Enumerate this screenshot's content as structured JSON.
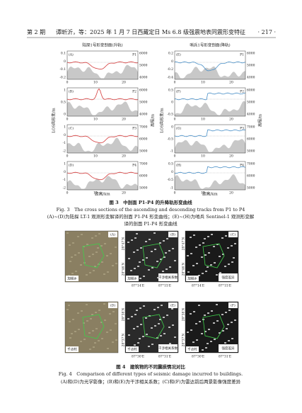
{
  "header": {
    "issue": "第 2 期",
    "title": "谭昕沂，等：2025 年 1 月 7 日西藏定日 Ms 6.8 级强震地表同震形变特征",
    "page": "· 217 ·"
  },
  "figure3": {
    "column_titles": [
      "陆探1号形变剖面(升轨)",
      "哨兵1号形变剖面(降轨)"
    ],
    "y_label": "LOS向形变/m",
    "y2_label": "高程/m",
    "x_label": "距离/km",
    "panels": [
      {
        "label": "(A)",
        "profile": "P1",
        "yticks": [
          "0.1",
          "0",
          "-0.1",
          "-0.2"
        ],
        "y2ticks": [
          "6000",
          "5000",
          "4000"
        ],
        "xticks": [
          "0",
          "10",
          "20"
        ]
      },
      {
        "label": "(B)",
        "profile": "P2",
        "yticks": [
          "1",
          "0.5",
          "0"
        ],
        "y2ticks": [
          "6000",
          "5000",
          "4000"
        ],
        "xticks": [
          "0",
          "10",
          "20"
        ]
      },
      {
        "label": "(C)",
        "profile": "P3",
        "yticks": [
          "1",
          "0",
          "-1",
          "-2"
        ],
        "y2ticks": [
          "7000",
          "6000",
          "5000"
        ],
        "xticks": [
          "0",
          "10",
          "20"
        ]
      },
      {
        "label": "(D)",
        "profile": "P4",
        "yticks": [
          "1",
          "0",
          "-1",
          "-2"
        ],
        "y2ticks": [
          "7000",
          "6000",
          "5000"
        ],
        "xticks": [
          "0",
          "10",
          "20"
        ]
      },
      {
        "label": "(E)",
        "profile": "P1",
        "yticks": [
          "0.2",
          "0",
          "-0.2",
          "-0.4"
        ],
        "y2ticks": [
          "6000",
          "5000",
          "4000"
        ],
        "xticks": [
          "0",
          "10",
          "20"
        ]
      },
      {
        "label": "(F)",
        "profile": "P2",
        "yticks": [
          "0.5",
          "0",
          "-0.5"
        ],
        "y2ticks": [
          "6000",
          "5000",
          "4000"
        ],
        "xticks": [
          "0",
          "10",
          "20"
        ]
      },
      {
        "label": "(G)",
        "profile": "P3",
        "yticks": [
          "0",
          "-0.5",
          "-1"
        ],
        "y2ticks": [
          "7000",
          "6000",
          "5000"
        ],
        "xticks": [
          "0",
          "10",
          "20"
        ]
      },
      {
        "label": "(H)",
        "profile": "P4",
        "yticks": [
          "0.5",
          "0",
          "-0.5",
          "-1"
        ],
        "y2ticks": [
          "7000",
          "6000",
          "5000"
        ],
        "xticks": [
          "0",
          "10",
          "20"
        ]
      }
    ],
    "caption_cn": "图 3　中剖面 P1-P4 的升降轨形变曲线",
    "caption_en": "Fig. 3　The cross sections of the ascending and descending tracks from P1 to P4",
    "note": [
      "(A)~(D)为陆探 LT-1 观测形变解译的剖面 P1-P4 形变曲线；(E)~(H)为哨兵 Sentinel-1 观测形变解",
      "译的剖面 P1-P4 形变曲线"
    ]
  },
  "figure4": {
    "panels": [
      {
        "label": "(A)",
        "place": "加错乡"
      },
      {
        "label": "(B)",
        "place": "加错乡",
        "legend": "干涉相关系数",
        "lat": [
          "28°47′N",
          "28°46′N"
        ],
        "lon": [
          "87°14′E",
          "87°15′E"
        ]
      },
      {
        "label": "(C)",
        "place": "加错乡",
        "legend": "强度差异",
        "lat": [
          "28°47′N",
          "28°46′N"
        ],
        "lon": [
          "87°14′E",
          "87°15′E"
        ]
      },
      {
        "label": "(D)",
        "place": "千点村"
      },
      {
        "label": "(E)",
        "place": "千点村",
        "legend": "干涉相关系数",
        "lat": [
          "28°38′N",
          "28°37′N"
        ],
        "lon": [
          "87°30′E",
          "87°31′E"
        ]
      },
      {
        "label": "(F)",
        "place": "千点村",
        "legend": "强度差异",
        "lat": [
          "28°38′N",
          "28°37′N"
        ],
        "lon": [
          "87°30′E",
          "87°31′E"
        ]
      }
    ],
    "caption_cn": "图 4　建筑物的不同震损情况对比",
    "caption_en": "Fig. 4　Comparison of different types of seismic damage incurred to buildings.",
    "note": "(A)和(D)为光学影像；(B)和(E)为干涉相关系数；(C)和(F)为雷达前后两景影像强度差异"
  }
}
